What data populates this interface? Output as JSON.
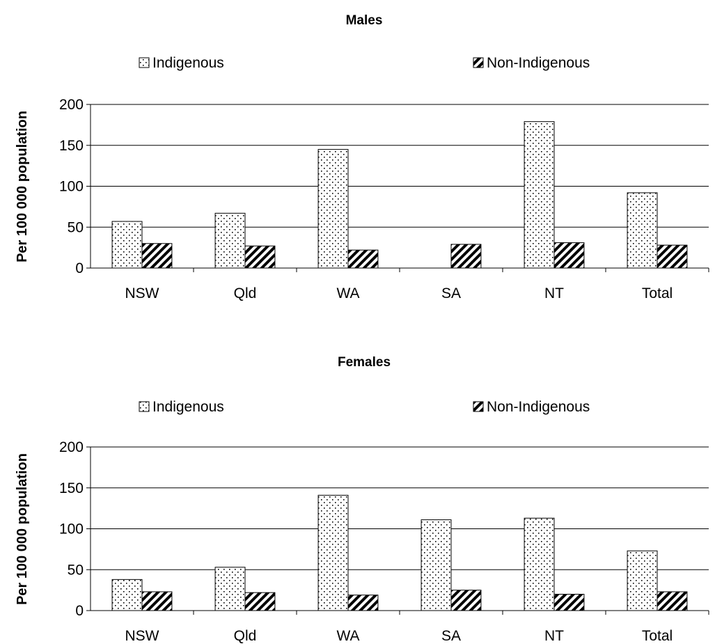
{
  "chart_data": [
    {
      "type": "bar",
      "title": "Males",
      "ylabel": "Per 100 000 population",
      "xlabel": "",
      "categories": [
        "NSW",
        "Qld",
        "WA",
        "SA",
        "NT",
        "Total"
      ],
      "ylim": [
        0,
        200
      ],
      "yticks": [
        0,
        50,
        100,
        150,
        200
      ],
      "grid": true,
      "legend_position": "top",
      "series": [
        {
          "name": "Indigenous",
          "values": [
            57,
            67,
            145,
            null,
            179,
            92
          ]
        },
        {
          "name": "Non-Indigenous",
          "values": [
            30,
            27,
            22,
            29,
            31,
            28
          ]
        }
      ]
    },
    {
      "type": "bar",
      "title": "Females",
      "ylabel": "Per 100 000 population",
      "xlabel": "",
      "categories": [
        "NSW",
        "Qld",
        "WA",
        "SA",
        "NT",
        "Total"
      ],
      "ylim": [
        0,
        200
      ],
      "yticks": [
        0,
        50,
        100,
        150,
        200
      ],
      "grid": true,
      "legend_position": "top",
      "series": [
        {
          "name": "Indigenous",
          "values": [
            38,
            53,
            141,
            111,
            113,
            73
          ]
        },
        {
          "name": "Non-Indigenous",
          "values": [
            23,
            22,
            19,
            25,
            20,
            23
          ]
        }
      ]
    }
  ]
}
